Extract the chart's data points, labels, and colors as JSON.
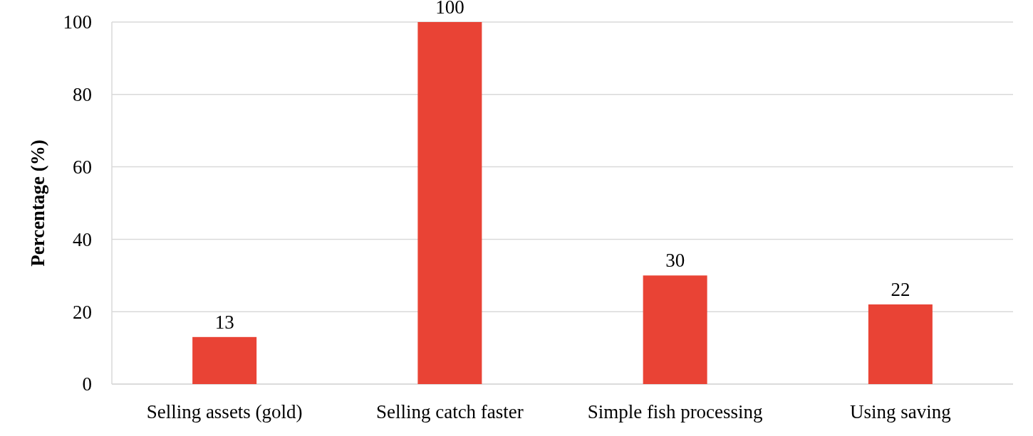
{
  "chart_data": {
    "type": "bar",
    "ylabel": "Percentage (%)",
    "categories": [
      "Selling assets (gold)",
      "Selling catch faster",
      "Simple fish processing",
      "Using saving"
    ],
    "values": [
      13,
      100,
      30,
      22
    ],
    "color": "#e94335",
    "ylim": [
      0,
      100
    ],
    "yticks": [
      0,
      20,
      40,
      60,
      80,
      100
    ],
    "grid": "y",
    "data_labels": true
  }
}
